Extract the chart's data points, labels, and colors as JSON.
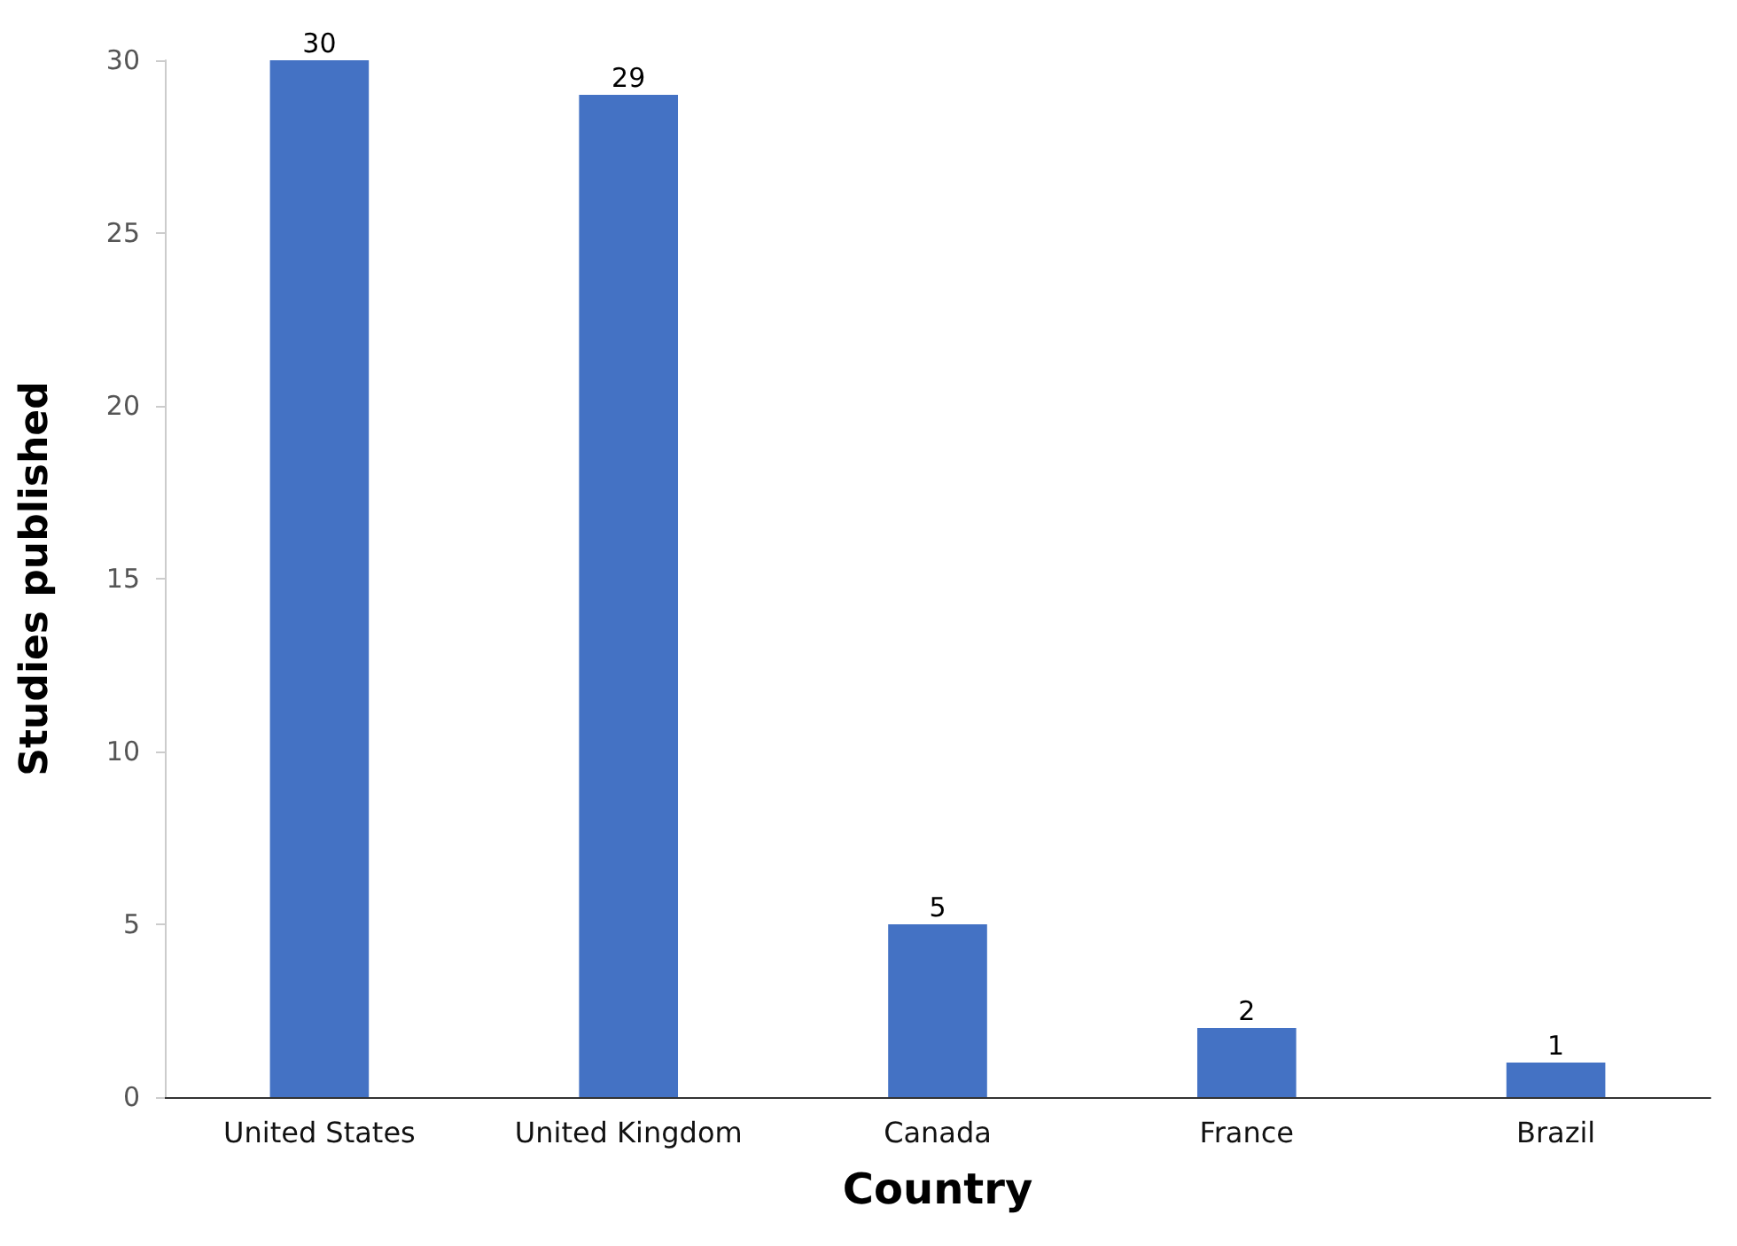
{
  "chart_data": {
    "type": "bar",
    "xlabel": "Country",
    "ylabel": "Studies published",
    "categories": [
      "United States",
      "United Kingdom",
      "Canada",
      "France",
      "Brazil"
    ],
    "values": [
      30,
      29,
      5,
      2,
      1
    ],
    "color": "#4472c4",
    "ylim": [
      0,
      30
    ],
    "yticks": [
      0,
      5,
      10,
      15,
      20,
      25,
      30
    ],
    "grid": false,
    "data_labels": true
  }
}
